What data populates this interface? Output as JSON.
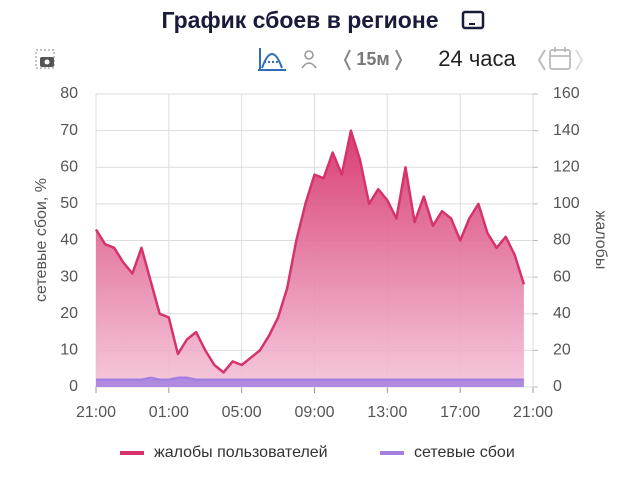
{
  "header": {
    "title": "График сбоев в регионе"
  },
  "toolbar": {
    "interval": "15м",
    "range": "24 часа"
  },
  "chart_data": {
    "type": "area",
    "ylabel": "сетевые сбои, %",
    "y2label": "жалобы",
    "x": [
      0,
      0.5,
      1,
      1.5,
      2,
      2.5,
      3,
      3.5,
      4,
      4.5,
      5,
      5.5,
      6,
      6.5,
      7,
      7.5,
      8,
      8.5,
      9,
      9.5,
      10,
      10.5,
      11,
      11.5,
      12,
      12.5,
      13,
      13.5,
      14,
      14.5,
      15,
      15.5,
      16,
      16.5,
      17,
      17.5,
      18,
      18.5,
      19,
      19.5,
      20,
      20.5,
      21,
      21.5,
      22,
      22.5,
      23,
      23.5
    ],
    "xlim": [
      0,
      24
    ],
    "xticks": [
      {
        "value": 0,
        "label": "21:00"
      },
      {
        "value": 4,
        "label": "01:00"
      },
      {
        "value": 8,
        "label": "05:00"
      },
      {
        "value": 12,
        "label": "09:00"
      },
      {
        "value": 16,
        "label": "13:00"
      },
      {
        "value": 20,
        "label": "17:00"
      },
      {
        "value": 24,
        "label": "21:00"
      }
    ],
    "ylim": [
      0,
      80
    ],
    "yticks": [
      0,
      10,
      20,
      30,
      40,
      50,
      60,
      70,
      80
    ],
    "y2lim": [
      0,
      160
    ],
    "y2ticks": [
      0,
      20,
      40,
      60,
      80,
      100,
      120,
      140,
      160
    ],
    "grid": true,
    "series": [
      {
        "name": "жалобы пользователей",
        "color": "#d6336c",
        "axis": "y2",
        "values": [
          86,
          78,
          76,
          68,
          62,
          76,
          58,
          40,
          38,
          18,
          26,
          30,
          20,
          12,
          8,
          14,
          12,
          16,
          20,
          28,
          38,
          54,
          80,
          100,
          116,
          114,
          128,
          116,
          140,
          124,
          100,
          108,
          102,
          92,
          120,
          90,
          104,
          88,
          96,
          92,
          80,
          92,
          100,
          84,
          76,
          82,
          72,
          56
        ]
      },
      {
        "name": "сетевые сбои",
        "color": "#a37fe0",
        "axis": "y",
        "values": [
          2,
          2,
          2,
          2,
          2,
          2,
          2.5,
          2,
          2,
          2.5,
          2.5,
          2,
          2,
          2,
          2,
          2,
          2,
          2,
          2,
          2,
          2,
          2,
          2,
          2,
          2,
          2,
          2,
          2,
          2,
          2,
          2,
          2,
          2,
          2,
          2,
          2,
          2,
          2,
          2,
          2,
          2,
          2,
          2,
          2,
          2,
          2,
          2,
          2
        ]
      }
    ]
  }
}
